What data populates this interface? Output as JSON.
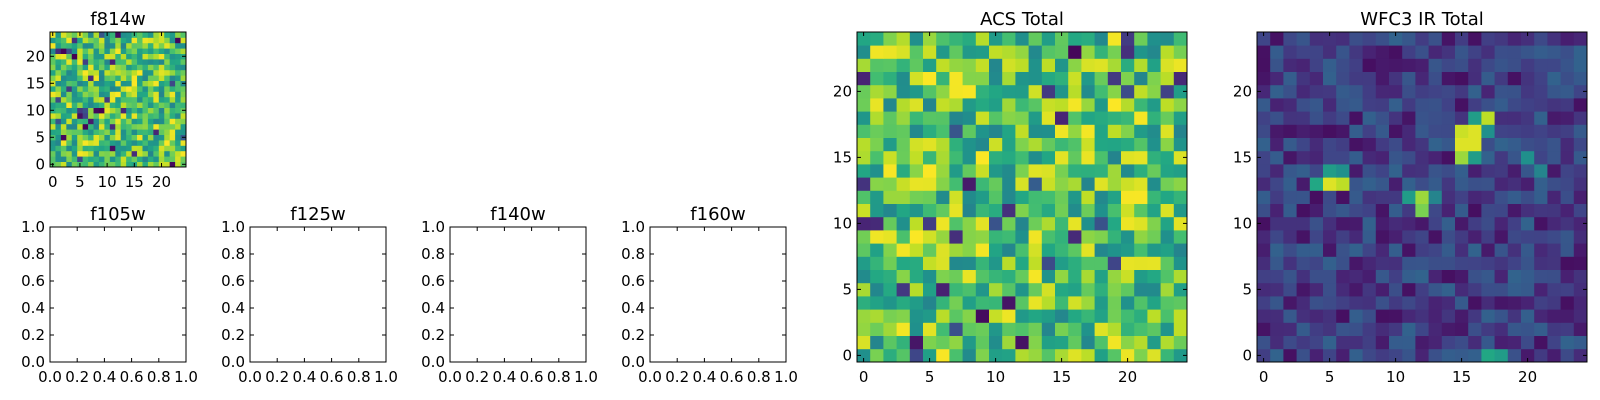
{
  "chart_data": [
    {
      "type": "heatmap",
      "title": "f814w",
      "grid_size": 25,
      "seed": 11,
      "cmap": "viridis",
      "xticks": [
        "0",
        "5",
        "10",
        "15",
        "20"
      ],
      "yticks": [
        "0",
        "5",
        "10",
        "15",
        "20"
      ],
      "xlim": [
        -0.5,
        24.5
      ],
      "ylim": [
        -0.5,
        24.5
      ],
      "values_range": [
        0.0,
        1.0
      ],
      "note": "noise-like field, mostly green/yellow with scattered dark pixels"
    },
    {
      "type": "empty",
      "title": "f105w",
      "xticks": [
        "0.0",
        "0.2",
        "0.4",
        "0.6",
        "0.8",
        "1.0"
      ],
      "yticks": [
        "0.0",
        "0.2",
        "0.4",
        "0.6",
        "0.8",
        "1.0"
      ],
      "xlim": [
        0,
        1
      ],
      "ylim": [
        0,
        1
      ]
    },
    {
      "type": "empty",
      "title": "f125w",
      "xticks": [
        "0.0",
        "0.2",
        "0.4",
        "0.6",
        "0.8",
        "1.0"
      ],
      "yticks": [
        "0.0",
        "0.2",
        "0.4",
        "0.6",
        "0.8",
        "1.0"
      ],
      "xlim": [
        0,
        1
      ],
      "ylim": [
        0,
        1
      ]
    },
    {
      "type": "empty",
      "title": "f140w",
      "xticks": [
        "0.0",
        "0.2",
        "0.4",
        "0.6",
        "0.8",
        "1.0"
      ],
      "yticks": [
        "0.0",
        "0.2",
        "0.4",
        "0.6",
        "0.8",
        "1.0"
      ],
      "xlim": [
        0,
        1
      ],
      "ylim": [
        0,
        1
      ]
    },
    {
      "type": "empty",
      "title": "f160w",
      "xticks": [
        "0.0",
        "0.2",
        "0.4",
        "0.6",
        "0.8",
        "1.0"
      ],
      "yticks": [
        "0.0",
        "0.2",
        "0.4",
        "0.6",
        "0.8",
        "1.0"
      ],
      "xlim": [
        0,
        1
      ],
      "ylim": [
        0,
        1
      ]
    },
    {
      "type": "heatmap",
      "title": "ACS Total",
      "grid_size": 25,
      "seed": 23,
      "cmap": "viridis",
      "xticks": [
        "0",
        "5",
        "10",
        "15",
        "20"
      ],
      "yticks": [
        "0",
        "5",
        "10",
        "15",
        "20"
      ],
      "xlim": [
        -0.5,
        24.5
      ],
      "ylim": [
        -0.5,
        24.5
      ],
      "values_range": [
        0.0,
        1.0
      ],
      "note": "noise-like field, predominantly green with yellow highlights and few dark pixels"
    },
    {
      "type": "heatmap",
      "title": "WFC3 IR Total",
      "grid_size": 25,
      "seed": 37,
      "cmap": "viridis",
      "xticks": [
        "0",
        "5",
        "10",
        "15",
        "20"
      ],
      "yticks": [
        "0",
        "5",
        "10",
        "15",
        "20"
      ],
      "xlim": [
        -0.5,
        24.5
      ],
      "ylim": [
        -0.5,
        24.5
      ],
      "values_range": [
        0.0,
        1.0
      ],
      "note": "dark purple background with bright sources",
      "hotspots": [
        {
          "x": 15,
          "y": 16,
          "value": 0.95
        },
        {
          "x": 16,
          "y": 16,
          "value": 0.95
        },
        {
          "x": 15,
          "y": 17,
          "value": 0.92
        },
        {
          "x": 16,
          "y": 17,
          "value": 0.95
        },
        {
          "x": 17,
          "y": 18,
          "value": 0.9
        },
        {
          "x": 16,
          "y": 18,
          "value": 0.55
        },
        {
          "x": 17,
          "y": 17,
          "value": 0.5
        },
        {
          "x": 16,
          "y": 15,
          "value": 0.55
        },
        {
          "x": 15,
          "y": 15,
          "value": 0.85
        },
        {
          "x": 5,
          "y": 13,
          "value": 0.95
        },
        {
          "x": 6,
          "y": 13,
          "value": 0.9
        },
        {
          "x": 5,
          "y": 14,
          "value": 0.55
        },
        {
          "x": 6,
          "y": 14,
          "value": 0.5
        },
        {
          "x": 4,
          "y": 13,
          "value": 0.6
        },
        {
          "x": 12,
          "y": 12,
          "value": 0.85
        },
        {
          "x": 12,
          "y": 11,
          "value": 0.8
        },
        {
          "x": 11,
          "y": 12,
          "value": 0.55
        },
        {
          "x": 13,
          "y": 12,
          "value": 0.45
        },
        {
          "x": 17,
          "y": 0,
          "value": 0.6
        },
        {
          "x": 18,
          "y": 0,
          "value": 0.55
        },
        {
          "x": 20,
          "y": 15,
          "value": 0.5
        },
        {
          "x": 21,
          "y": 14,
          "value": 0.45
        }
      ]
    }
  ]
}
